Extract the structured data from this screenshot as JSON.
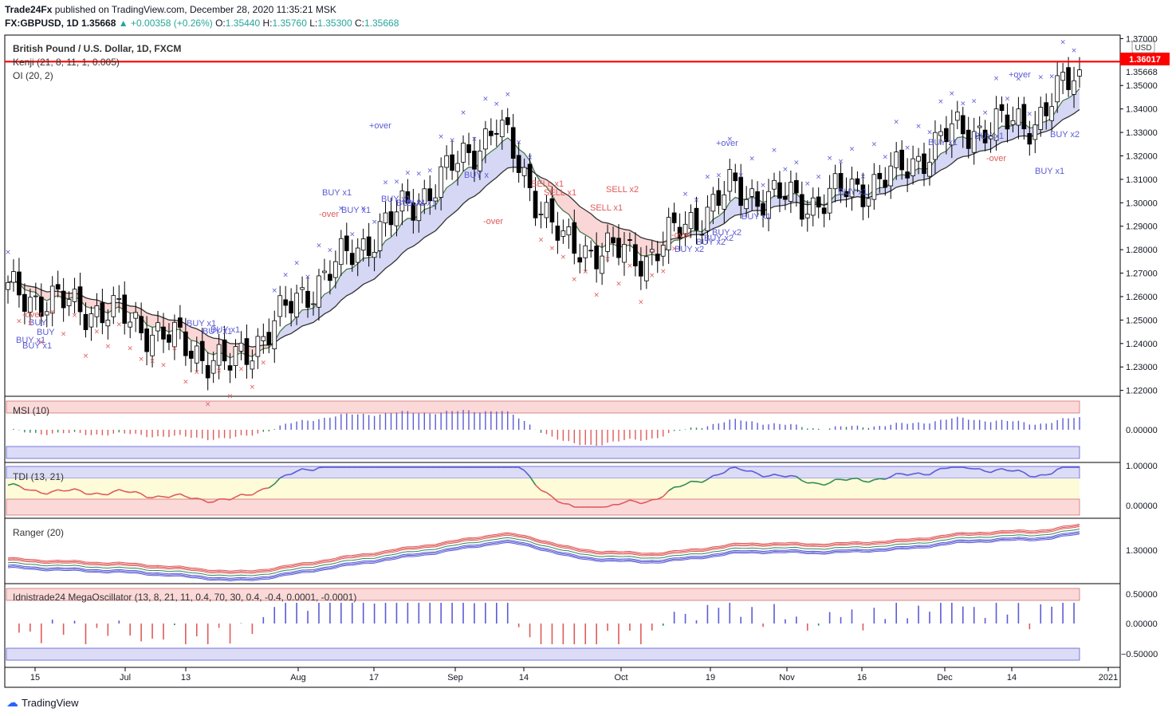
{
  "header": {
    "publisher": "Trade24Fx",
    "published_text": "published on TradingView.com, December 28, 2020 11:35:21 MSK",
    "symbol": "FX:GBPUSD, 1D",
    "last": "1.35668",
    "change": "+0.00358 (+0.26%)",
    "o_label": "O:",
    "o": "1.35440",
    "h_label": "H:",
    "h": "1.35760",
    "l_label": "L:",
    "l": "1.35300",
    "c_label": "C:",
    "c": "1.35668"
  },
  "main_pane": {
    "title": "British Pound / U.S. Dollar, 1D, FXCM",
    "indicator1": "Kenji (21, 8, 11, 1, 0.005)",
    "indicator2": "OI (20, 2)",
    "currency": "USD",
    "resistance_label": "1.36017",
    "resistance_value": 1.36017,
    "last_label": "1.35668",
    "y_ticks": [
      "1.37000",
      "1.35000",
      "1.34000",
      "1.33000",
      "1.32000",
      "1.31000",
      "1.30000",
      "1.29000",
      "1.28000",
      "1.27000",
      "1.26000",
      "1.25000",
      "1.24000",
      "1.23000",
      "1.22000"
    ],
    "ylim": [
      1.2175,
      1.3715
    ]
  },
  "signals": [
    {
      "text": "-over",
      "color": "red",
      "x": 28,
      "y": 398
    },
    {
      "text": "BUY x1",
      "x": 20,
      "y": 430
    },
    {
      "text": "BUY",
      "x": 36,
      "y": 408
    },
    {
      "text": "BUY",
      "x": 46,
      "y": 420
    },
    {
      "text": "BUY x1",
      "x": 28,
      "y": 437
    },
    {
      "text": "BUY x1",
      "x": 234,
      "y": 409
    },
    {
      "text": "BUY x1",
      "x": 254,
      "y": 419
    },
    {
      "text": "BUY x1",
      "x": 264,
      "y": 417
    },
    {
      "text": "-over",
      "color": "red",
      "x": 400,
      "y": 272
    },
    {
      "text": "BUY x1",
      "x": 404,
      "y": 245
    },
    {
      "text": "BUY x1",
      "x": 428,
      "y": 267
    },
    {
      "text": "+over",
      "x": 463,
      "y": 161
    },
    {
      "text": "BUY x1",
      "x": 478,
      "y": 253
    },
    {
      "text": "BUY x1",
      "x": 497,
      "y": 258
    },
    {
      "text": "BUY x1",
      "x": 510,
      "y": 258
    },
    {
      "text": "BUY x",
      "x": 582,
      "y": 223
    },
    {
      "text": "-over",
      "color": "red",
      "x": 606,
      "y": 281
    },
    {
      "text": "SELL x1",
      "color": "red",
      "x": 666,
      "y": 234
    },
    {
      "text": "SELL x1",
      "color": "red",
      "x": 682,
      "y": 245
    },
    {
      "text": "SELL x1",
      "color": "red",
      "x": 740,
      "y": 264
    },
    {
      "text": "SELL x2",
      "color": "red",
      "x": 760,
      "y": 241
    },
    {
      "text": "-over",
      "color": "red",
      "x": 842,
      "y": 298
    },
    {
      "text": "BUY x2",
      "x": 846,
      "y": 316
    },
    {
      "text": "BUY x2",
      "x": 873,
      "y": 307
    },
    {
      "text": "BUY x2",
      "x": 883,
      "y": 302
    },
    {
      "text": "BUY x2",
      "x": 893,
      "y": 295
    },
    {
      "text": "+over",
      "x": 898,
      "y": 183
    },
    {
      "text": "BUY x1",
      "x": 930,
      "y": 275
    },
    {
      "text": "BUY x1",
      "x": 1051,
      "y": 244
    },
    {
      "text": "BUY x1",
      "x": 1164,
      "y": 182
    },
    {
      "text": "BUY x1",
      "x": 1222,
      "y": 174
    },
    {
      "text": "-over",
      "color": "red",
      "x": 1237,
      "y": 202
    },
    {
      "text": "+over",
      "x": 1265,
      "y": 97
    },
    {
      "text": "BUY x2",
      "x": 1317,
      "y": 172
    },
    {
      "text": "BUY x1",
      "x": 1298,
      "y": 218
    }
  ],
  "sub_panes": {
    "msi": {
      "title": "MSI (10)",
      "y_tick": "0.00000"
    },
    "tdi": {
      "title": "TDI (13, 21)",
      "y_ticks": [
        "1.00000",
        "0.00000"
      ]
    },
    "ranger": {
      "title": "Ranger (20)",
      "y_tick": "1.30000"
    },
    "mega": {
      "title": "Idnistrade24 MegaOscillator (13, 8, 21, 11, 0.4, 70, 30, 0.4, -0.4, 0.0001, -0.0001)",
      "y_ticks": [
        "0.50000",
        "0.00000",
        "−0.50000"
      ]
    }
  },
  "x_axis": {
    "labels": [
      "15",
      "Jul",
      "13",
      "Aug",
      "17",
      "Sep",
      "14",
      "Oct",
      "19",
      "Nov",
      "16",
      "Dec",
      "14",
      "2021"
    ],
    "positions": [
      44,
      157,
      233,
      374,
      469,
      571,
      657,
      779,
      891,
      987,
      1081,
      1185,
      1269,
      1390
    ]
  },
  "chart_data": {
    "type": "candlestick",
    "title": "British Pound / U.S. Dollar, 1D, FXCM",
    "x_start_label": "15",
    "x_end_label": "2021",
    "close_anchor_days": [
      0,
      20,
      40,
      55,
      78,
      88,
      100,
      115,
      130,
      145,
      160,
      170,
      185,
      193
    ],
    "close_anchor_values": [
      1.262,
      1.252,
      1.23,
      1.265,
      1.31,
      1.333,
      1.282,
      1.277,
      1.305,
      1.3,
      1.312,
      1.33,
      1.335,
      1.3567
    ],
    "last_close": 1.35668,
    "ylim": [
      1.2175,
      1.3715
    ]
  },
  "footer": {
    "brand": "TradingView"
  },
  "colors": {
    "up": "#ffffff",
    "down": "#000000",
    "wick": "#000000",
    "signal_blue": "#5b5bd6",
    "signal_red": "#e05a5a",
    "resistance": "#ff0000",
    "cloud": "#c7c9f2",
    "cloud_red": "#f8c8c8"
  }
}
